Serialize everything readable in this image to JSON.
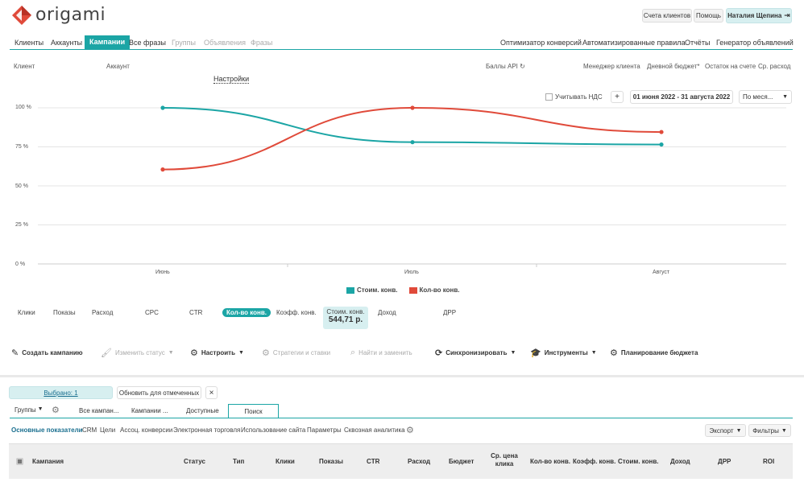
{
  "brand": {
    "name": "origami",
    "logo_color": "#e04a3a"
  },
  "top_buttons": {
    "client_accounts": "Счета клиентов",
    "help": "Помощь",
    "user": "Наталия Щепина"
  },
  "nav_left": [
    "Клиенты",
    "Аккаунты",
    "Кампании",
    "Все фразы",
    "Группы",
    "Объявления",
    "Фразы"
  ],
  "nav_right": [
    "Оптимизатор конверсий",
    "Автоматизированные правила",
    "Отчёты",
    "Генератор объявлений"
  ],
  "info_headers": {
    "client": "Клиент",
    "account": "Аккаунт",
    "settings": "Настройки",
    "api_points": "Баллы API",
    "manager": "Менеджер клиента",
    "daily_budget": "Дневной бюджет*",
    "balance": "Остаток на счете",
    "avg_spend": "Ср. расход"
  },
  "controls": {
    "vat_label": "Учитывать НДС",
    "plus": "+",
    "date_range": "01 июня 2022 - 31 августа 2022",
    "period": "По меся..."
  },
  "chart_data": {
    "type": "line",
    "categories": [
      "Июнь",
      "Июль",
      "Август"
    ],
    "y_ticks": [
      "100 %",
      "75 %",
      "50 %",
      "25 %",
      "0 %"
    ],
    "ylim": [
      0,
      100
    ],
    "series": [
      {
        "name": "Стоим. конв.",
        "values": [
          100,
          78,
          76.5
        ],
        "color": "#1ba5a5"
      },
      {
        "name": "Кол-во конв.",
        "values": [
          60.5,
          100,
          84.5
        ],
        "color": "#e04a3a"
      }
    ],
    "legend_position": "bottom-center",
    "grid": true
  },
  "metrics": [
    "Клики",
    "Показы",
    "Расход",
    "CPC",
    "CTR",
    "Кол-во конв.",
    "Коэфф. конв.",
    "Стоим. конв.",
    "Доход",
    "ДРР"
  ],
  "metric_value": "544,71 р.",
  "toolbar": {
    "create": "Создать кампанию",
    "change_status": "Изменить статус",
    "configure": "Настроить",
    "strategies": "Стратегии и ставки",
    "find_replace": "Найти и заменить",
    "sync": "Синхронизировать",
    "tools": "Инструменты",
    "budget_planning": "Планирование бюджета"
  },
  "selection": {
    "selected": "Выбрано: 1",
    "update_marked": "Обновить для отмеченных",
    "close": "×"
  },
  "tabs": {
    "groups": "Группы",
    "all_campaigns": "Все кампан...",
    "campaigns": "Кампании ...",
    "available": "Доступные",
    "search": "Поиск"
  },
  "subtabs": [
    "Основные показатели",
    "CRM",
    "Цели",
    "Ассоц. конверсии",
    "Электронная торговля",
    "Использование сайта",
    "Параметры",
    "Сквозная аналитика"
  ],
  "right_buttons": {
    "export": "Экспорт",
    "filters": "Фильтры"
  },
  "columns": [
    "Кампания",
    "Статус",
    "Тип",
    "Клики",
    "Показы",
    "CTR",
    "Расход",
    "Бюджет",
    "Ср. цена клика",
    "Кол-во конв.",
    "Коэфф. конв.",
    "Стоим. конв.",
    "Доход",
    "ДРР",
    "ROI"
  ]
}
